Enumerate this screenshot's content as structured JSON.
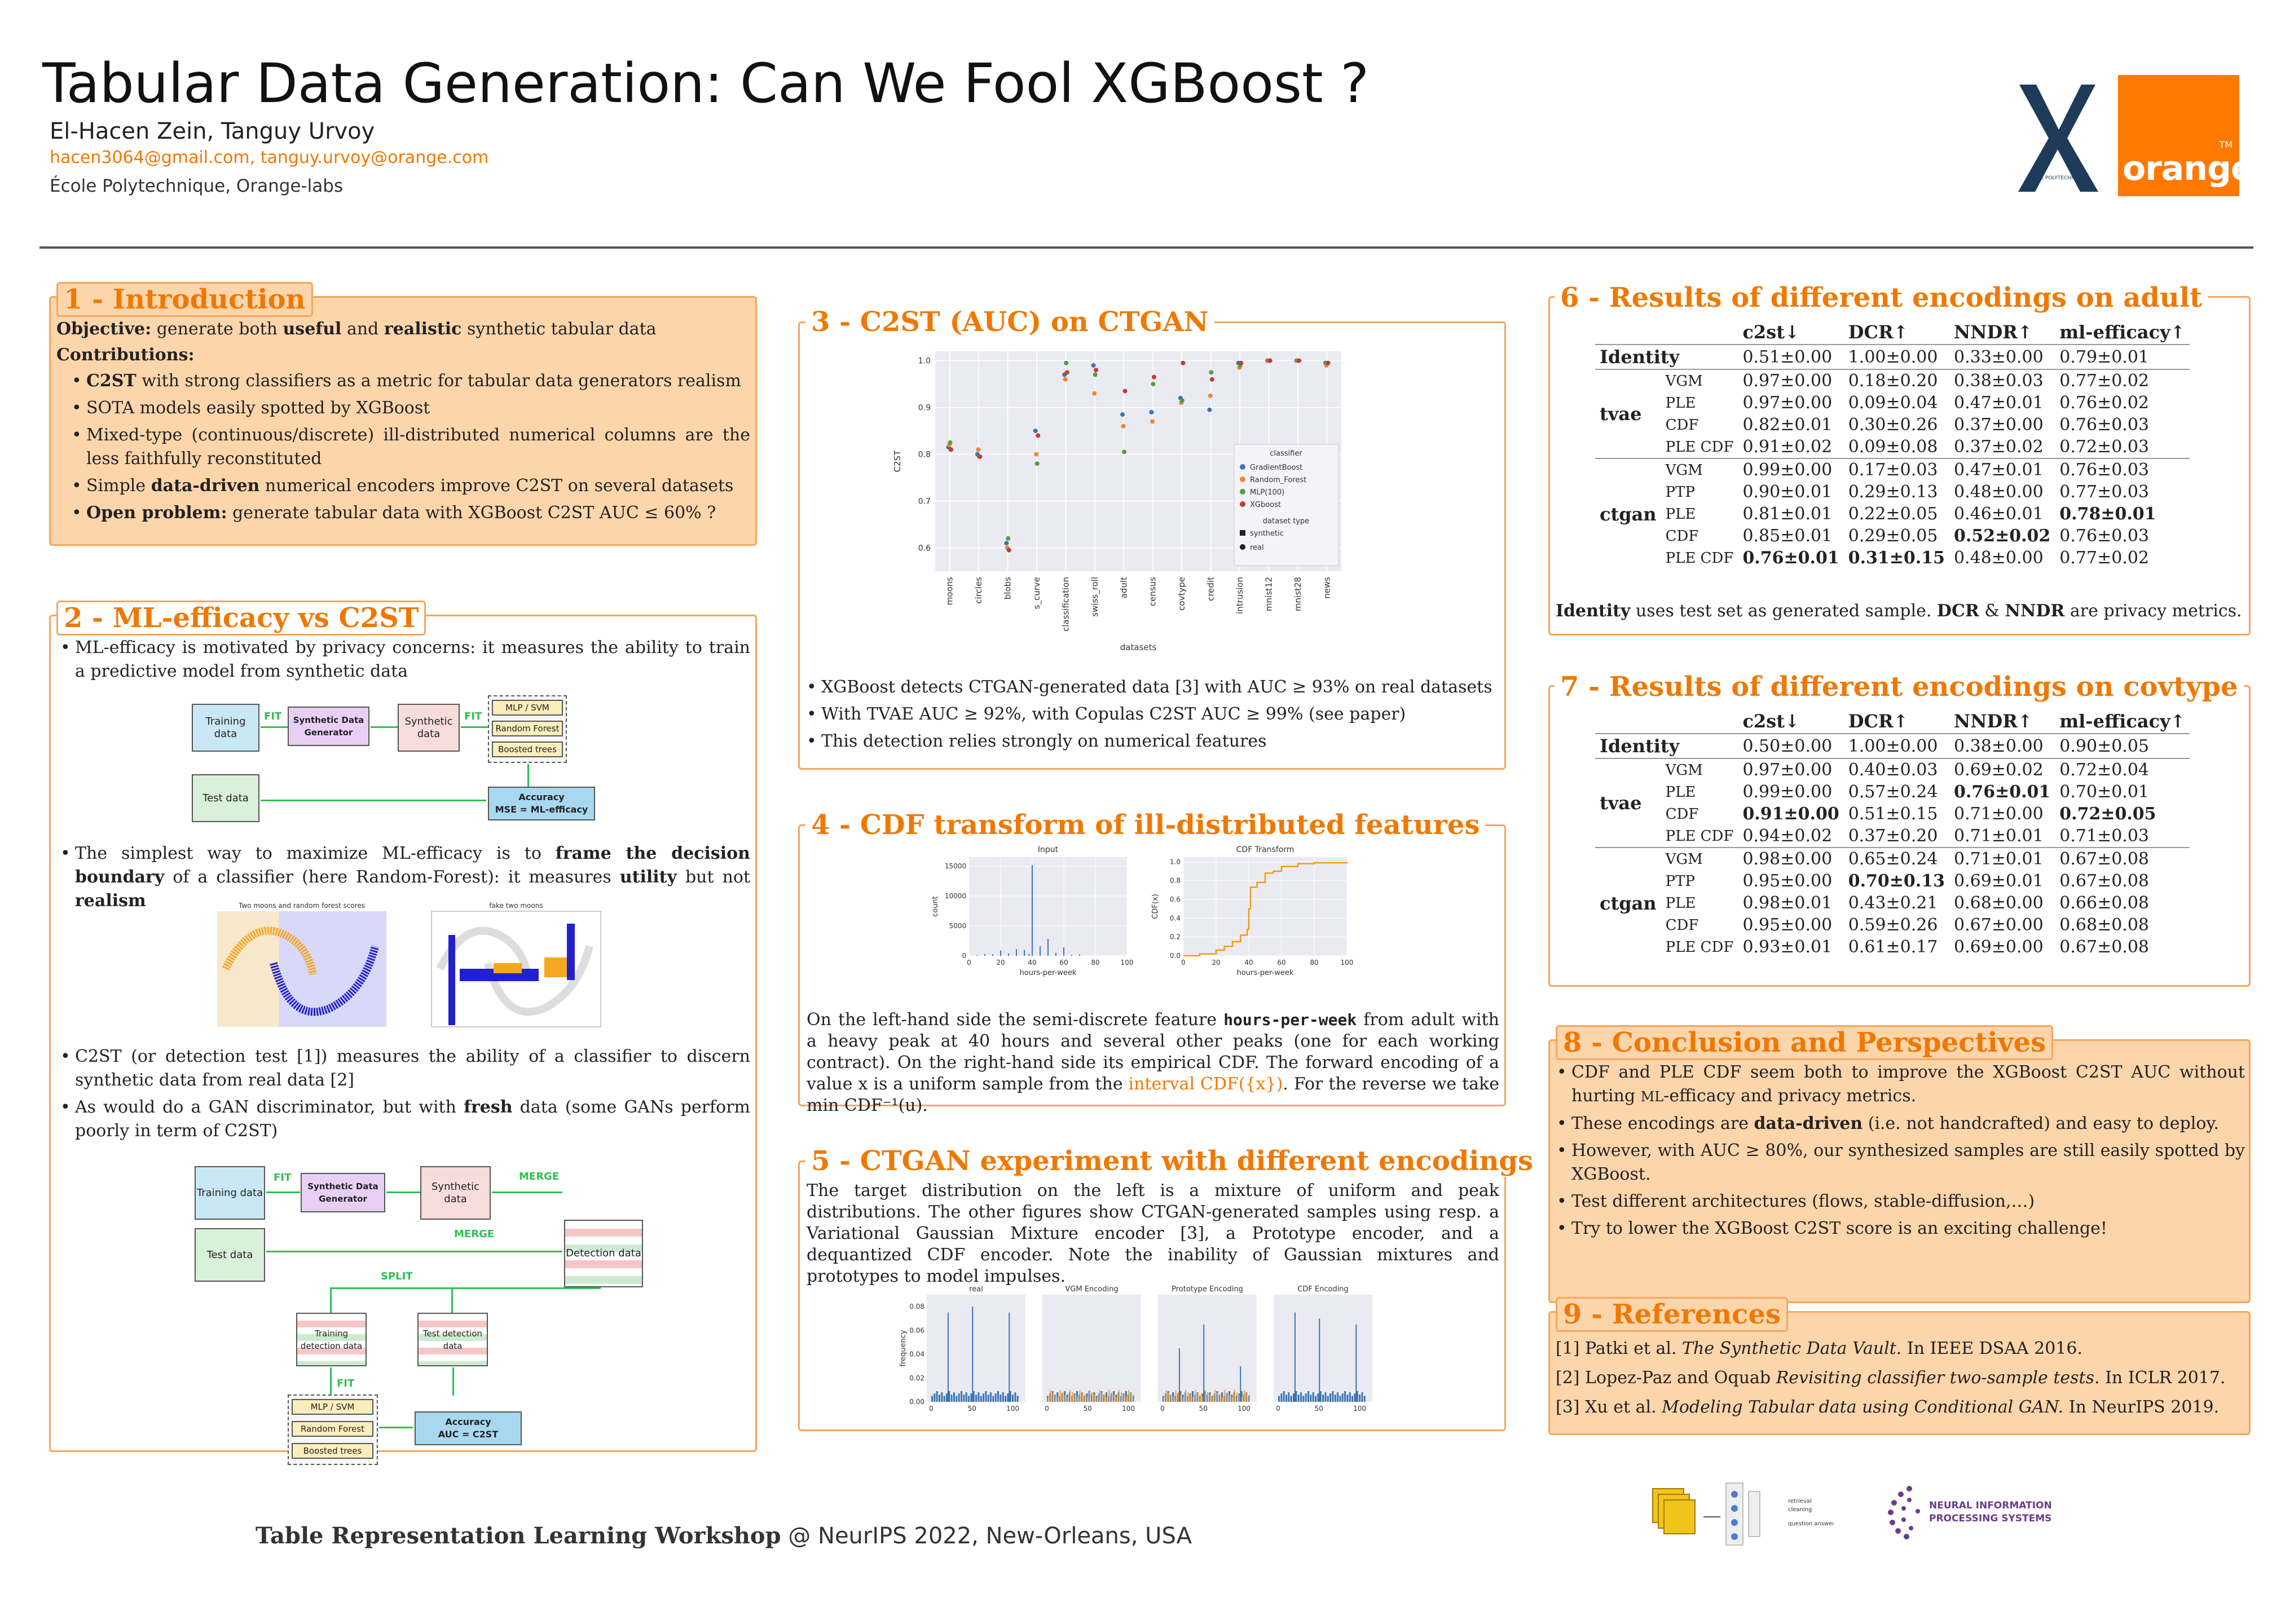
{
  "header": {
    "title": "Tabular Data Generation: Can We Fool XGBoost ?",
    "authors": "El-Hacen Zein, Tanguy Urvoy",
    "emails": "hacen3064@gmail.com, tanguy.urvoy@orange.com",
    "affiliation": "École Polytechnique, Orange-labs",
    "orange_logo_text": "orange",
    "orange_logo_tm": "TM",
    "polytechnique_logo_text": "ÉCOLE POLYTECHNIQUE"
  },
  "sec1": {
    "title": "1 - Introduction",
    "objective_label": "Objective:",
    "objective_a": " generate both ",
    "objective_b": "useful",
    "objective_c": " and ",
    "objective_d": "realistic",
    "objective_e": " synthetic tabular data",
    "contrib_label": "Contributions:",
    "b1_bold": "C2ST",
    "b1_rest": " with strong classifiers as a metric for tabular data generators realism",
    "b2": "SOTA models easily spotted by XGBoost",
    "b3": "Mixed-type (continuous/discrete) ill-distributed numerical columns are the less faithfully reconstituted",
    "b4_a": "Simple ",
    "b4_b": "data-driven",
    "b4_c": " numerical encoders improve C2ST on several datasets",
    "b5_bold": "Open problem:",
    "b5_rest": " generate tabular data with XGBoost C2ST AUC ≤ 60% ?"
  },
  "sec2": {
    "title": "2 - ML-efficacy vs C2ST",
    "b1": "ML-efficacy is motivated by privacy concerns: it measures the ability to train a predictive model from synthetic data",
    "b2_a": "The simplest way to maximize ML-efficacy is to ",
    "b2_b": "frame the decision boundary",
    "b2_c": " of a classifier (here Random-Forest): it measures ",
    "b2_d": "utility",
    "b2_e": " but not ",
    "b2_f": "realism",
    "b3": "C2ST (or detection test [1]) measures the ability of a classifier to discern synthetic data from real data [2]",
    "b4_a": "As would do a GAN discriminator, but with ",
    "b4_b": "fresh",
    "b4_c": " data (some GANs perform poorly in term of C2ST)",
    "dia1": {
      "training": "Training data",
      "generator": "Synthetic Data Generator",
      "synthetic": "Synthetic data",
      "fit1": "FIT",
      "fit2": "FIT",
      "mlp": "MLP / SVM",
      "rf": "Random Forest",
      "bt": "Boosted trees",
      "test": "Test data",
      "accuracy": "Accuracy",
      "mse": "MSE = ML-efficacy"
    },
    "moons_title1": "Two moons and random forest scores",
    "moons_title2": "fake two moons",
    "dia2": {
      "training": "Training data",
      "generator": "Synthetic Data Generator",
      "synthetic": "Synthetic data",
      "fit": "FIT",
      "merge1": "MERGE",
      "merge2": "MERGE",
      "split": "SPLIT",
      "test": "Test data",
      "detection": "Detection data",
      "train_det": "Training detection data",
      "test_det": "Test detection data",
      "fit2": "FIT",
      "mlp": "MLP / SVM",
      "rf": "Random Forest",
      "bt": "Boosted trees",
      "accuracy": "Accuracy",
      "auc": "AUC = C2ST"
    }
  },
  "sec3": {
    "title": "3 - C2ST (AUC) on CTGAN",
    "b1": "XGBoost detects CTGAN-generated data [3] with AUC ≥ 93% on real datasets",
    "b2": "With TVAE AUC ≥ 92%, with Copulas C2ST AUC ≥ 99% (see paper)",
    "b3": "This detection relies strongly on numerical features"
  },
  "sec4": {
    "title": "4 - CDF transform of ill-distributed features",
    "p_a": "On the left-hand side the semi-discrete feature ",
    "p_code": "hours-per-week",
    "p_b": " from adult with a heavy peak at 40 hours and several other peaks (one for each working contract). On the right-hand side its empirical CDF. The forward encoding of a value x is a uniform sample from the ",
    "p_c": "interval CDF({x})",
    "p_d": ". For the reverse we take min CDF⁻¹(u)."
  },
  "sec5": {
    "title": "5 - CTGAN experiment with different encodings",
    "p": "The target distribution on the left is a mixture of uniform and peak distributions. The other figures show CTGAN-generated samples using resp. a Variational Gaussian Mixture encoder [3], a Prototype encoder, and a dequantized CDF encoder. Note the inability of Gaussian mixtures and prototypes to model impulses."
  },
  "sec6": {
    "title": "6 - Results of different encodings on adult",
    "headers": [
      "c2st↓",
      "DCR↑",
      "NNDR↑",
      "ml-efficacy↑"
    ],
    "identity_label": "Identity",
    "identity": [
      "0.51±0.00",
      "1.00±0.00",
      "0.33±0.00",
      "0.79±0.01"
    ],
    "groups": [
      {
        "name": "tvae",
        "rows": [
          {
            "enc": "VGM",
            "vals": [
              "0.97±0.00",
              "0.18±0.20",
              "0.38±0.03",
              "0.77±0.02"
            ],
            "bold": []
          },
          {
            "enc": "PLE",
            "vals": [
              "0.97±0.00",
              "0.09±0.04",
              "0.47±0.01",
              "0.76±0.02"
            ],
            "bold": []
          },
          {
            "enc": "CDF",
            "vals": [
              "0.82±0.01",
              "0.30±0.26",
              "0.37±0.00",
              "0.76±0.03"
            ],
            "bold": []
          },
          {
            "enc": "PLE CDF",
            "vals": [
              "0.91±0.02",
              "0.09±0.08",
              "0.37±0.02",
              "0.72±0.03"
            ],
            "bold": []
          }
        ]
      },
      {
        "name": "ctgan",
        "rows": [
          {
            "enc": "VGM",
            "vals": [
              "0.99±0.00",
              "0.17±0.03",
              "0.47±0.01",
              "0.76±0.03"
            ],
            "bold": []
          },
          {
            "enc": "PTP",
            "vals": [
              "0.90±0.01",
              "0.29±0.13",
              "0.48±0.00",
              "0.77±0.03"
            ],
            "bold": []
          },
          {
            "enc": "PLE",
            "vals": [
              "0.81±0.01",
              "0.22±0.05",
              "0.46±0.01",
              "0.78±0.01"
            ],
            "bold": [
              3
            ]
          },
          {
            "enc": "CDF",
            "vals": [
              "0.85±0.01",
              "0.29±0.05",
              "0.52±0.02",
              "0.76±0.03"
            ],
            "bold": [
              2
            ]
          },
          {
            "enc": "PLE CDF",
            "vals": [
              "0.76±0.01",
              "0.31±0.15",
              "0.48±0.00",
              "0.77±0.02"
            ],
            "bold": [
              0,
              1
            ]
          }
        ]
      }
    ],
    "note_a": "Identity",
    "note_b": " uses test set as generated sample. ",
    "note_c": "DCR",
    "note_d": " & ",
    "note_e": "NNDR",
    "note_f": " are privacy metrics."
  },
  "sec7": {
    "title": "7 - Results of different encodings on covtype",
    "headers": [
      "c2st↓",
      "DCR↑",
      "NNDR↑",
      "ml-efficacy↑"
    ],
    "identity_label": "Identity",
    "identity": [
      "0.50±0.00",
      "1.00±0.00",
      "0.38±0.00",
      "0.90±0.05"
    ],
    "groups": [
      {
        "name": "tvae",
        "rows": [
          {
            "enc": "VGM",
            "vals": [
              "0.97±0.00",
              "0.40±0.03",
              "0.69±0.02",
              "0.72±0.04"
            ],
            "bold": []
          },
          {
            "enc": "PLE",
            "vals": [
              "0.99±0.00",
              "0.57±0.24",
              "0.76±0.01",
              "0.70±0.01"
            ],
            "bold": [
              2
            ]
          },
          {
            "enc": "CDF",
            "vals": [
              "0.91±0.00",
              "0.51±0.15",
              "0.71±0.00",
              "0.72±0.05"
            ],
            "bold": [
              0,
              3
            ]
          },
          {
            "enc": "PLE CDF",
            "vals": [
              "0.94±0.02",
              "0.37±0.20",
              "0.71±0.01",
              "0.71±0.03"
            ],
            "bold": []
          }
        ]
      },
      {
        "name": "ctgan",
        "rows": [
          {
            "enc": "VGM",
            "vals": [
              "0.98±0.00",
              "0.65±0.24",
              "0.71±0.01",
              "0.67±0.08"
            ],
            "bold": []
          },
          {
            "enc": "PTP",
            "vals": [
              "0.95±0.00",
              "0.70±0.13",
              "0.69±0.01",
              "0.67±0.08"
            ],
            "bold": [
              1
            ]
          },
          {
            "enc": "PLE",
            "vals": [
              "0.98±0.01",
              "0.43±0.21",
              "0.68±0.00",
              "0.66±0.08"
            ],
            "bold": []
          },
          {
            "enc": "CDF",
            "vals": [
              "0.95±0.00",
              "0.59±0.26",
              "0.67±0.00",
              "0.68±0.08"
            ],
            "bold": []
          },
          {
            "enc": "PLE CDF",
            "vals": [
              "0.93±0.01",
              "0.61±0.17",
              "0.69±0.00",
              "0.67±0.08"
            ],
            "bold": []
          }
        ]
      }
    ]
  },
  "sec8": {
    "title": "8 - Conclusion and Perspectives",
    "b1_a": "CDF and PLE CDF seem both to improve the XGBoost C2ST AUC without hurting ",
    "b1_b": "ML",
    "b1_c": "-efficacy and privacy metrics.",
    "b2_a": "These encodings are ",
    "b2_b": "data-driven",
    "b2_c": " (i.e. not handcrafted) and easy to deploy.",
    "b3": "However, with AUC ≥ 80%, our synthesized samples are still easily spotted by XGBoost.",
    "b4": "Test different architectures (flows, stable-diffusion,…)",
    "b5": "Try to lower the XGBoost C2ST score is an exciting challenge!"
  },
  "sec9": {
    "title": "9 - References",
    "refs": [
      {
        "a": "[1] Patki et al. ",
        "t": "The Synthetic Data Vault.",
        "b": " In IEEE DSAA 2016."
      },
      {
        "a": "[2] Lopez-Paz and Oquab ",
        "t": "Revisiting classifier two-sample tests.",
        "b": " In ICLR 2017."
      },
      {
        "a": "[3] Xu et al. ",
        "t": "Modeling Tabular data using Conditional GAN.",
        "b": " In NeurIPS 2019."
      }
    ]
  },
  "footer": {
    "bold": "Table Representation Learning Workshop",
    "rest": " @ NeurIPS 2022, New-Orleans, USA",
    "trl_labels": [
      "retrieval",
      "cleaning",
      "question answering"
    ],
    "neurips_line1": "NEURAL INFORMATION",
    "neurips_line2": "PROCESSING SYSTEMS"
  },
  "chart_data": [
    {
      "type": "scatter",
      "name_ref": "c2st_ctgan",
      "xlabel": "datasets",
      "ylabel": "C2ST",
      "ylim": [
        0.55,
        1.02
      ],
      "yticks": [
        0.6,
        0.7,
        0.8,
        0.9,
        1.0
      ],
      "categories": [
        "moons",
        "circles",
        "blobs",
        "s_curve",
        "classification",
        "swiss_roll",
        "adult",
        "census",
        "covtype",
        "credit",
        "intrusion",
        "mnist12",
        "mnist28",
        "news"
      ],
      "legend_title": "classifier",
      "legend_sub": "dataset type",
      "legend_placement": "right",
      "series": [
        {
          "name": "GradientBoost",
          "color": "#3b75af",
          "synthetic": [
            0.815,
            0.8,
            0.61,
            0.85,
            0.97,
            0.99,
            0.885,
            0.89,
            0.92,
            0.895,
            0.995,
            1.0,
            1.0,
            0.995
          ]
        },
        {
          "name": "Random_Forest",
          "color": "#ef8636",
          "synthetic": [
            0.82,
            0.81,
            0.6,
            0.8,
            0.96,
            0.93,
            0.86,
            0.87,
            0.91,
            0.925,
            0.985,
            1.0,
            1.0,
            0.99
          ]
        },
        {
          "name": "MLP(100)",
          "color": "#519e3e",
          "synthetic": [
            0.825,
            0.795,
            0.62,
            0.78,
            0.995,
            0.97,
            0.805,
            0.95,
            0.915,
            0.975,
            0.99,
            1.0,
            1.0,
            0.995
          ]
        },
        {
          "name": "XGboost",
          "color": "#c53a32",
          "synthetic": [
            0.81,
            0.795,
            0.595,
            0.84,
            0.975,
            0.98,
            0.935,
            0.965,
            0.995,
            0.96,
            0.995,
            1.0,
            1.0,
            0.995
          ]
        }
      ],
      "markers": [
        "synthetic",
        "real"
      ]
    },
    {
      "type": "bar",
      "name_ref": "input_hist",
      "title": "Input",
      "xlabel": "hours-per-week",
      "ylabel": "count",
      "xlim": [
        0,
        100
      ],
      "ylim": [
        0,
        16500
      ],
      "yticks": [
        0,
        5000,
        10000,
        15000
      ],
      "xticks": [
        0,
        20,
        40,
        60,
        80,
        100
      ],
      "x": [
        5,
        10,
        15,
        20,
        25,
        30,
        35,
        38,
        40,
        45,
        50,
        55,
        60,
        65,
        70
      ],
      "values": [
        100,
        300,
        250,
        900,
        400,
        1100,
        1000,
        300,
        15200,
        1600,
        2800,
        500,
        1400,
        150,
        200
      ]
    },
    {
      "type": "line",
      "name_ref": "cdf_transform",
      "title": "CDF Transform",
      "xlabel": "hours-per-week",
      "ylabel": "CDF(x)",
      "xlim": [
        0,
        100
      ],
      "ylim": [
        0,
        1.05
      ],
      "yticks": [
        0.0,
        0.2,
        0.4,
        0.6,
        0.8,
        1.0
      ],
      "xticks": [
        0,
        20,
        40,
        60,
        80,
        100
      ],
      "x": [
        0,
        10,
        20,
        25,
        30,
        35,
        39,
        40,
        41,
        45,
        50,
        55,
        60,
        70,
        80,
        100
      ],
      "values": [
        0.0,
        0.02,
        0.06,
        0.1,
        0.15,
        0.22,
        0.28,
        0.5,
        0.73,
        0.78,
        0.88,
        0.9,
        0.95,
        0.98,
        0.99,
        1.0
      ]
    },
    {
      "type": "bar",
      "name_ref": "encodings",
      "ylabel": "frequency",
      "ylim": [
        0,
        0.09
      ],
      "yticks": [
        0.0,
        0.02,
        0.04,
        0.06,
        0.08
      ],
      "xticks": [
        0,
        50,
        100
      ],
      "panels": [
        "real",
        "VGM Encoding",
        "Prototype Encoding",
        "CDF Encoding"
      ]
    }
  ]
}
